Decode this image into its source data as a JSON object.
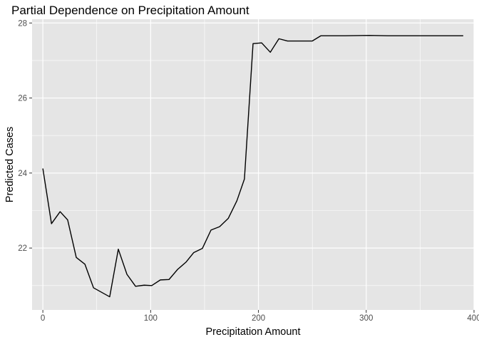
{
  "chart_data": {
    "type": "line",
    "title": "Partial Dependence on Precipitation Amount",
    "xlabel": "Precipitation Amount",
    "ylabel": "Predicted Cases",
    "xlim": [
      -10,
      400
    ],
    "ylim": [
      20.35,
      28.1
    ],
    "xticks": [
      0,
      100,
      200,
      300,
      400
    ],
    "yticks": [
      22,
      24,
      26,
      28
    ],
    "x_tick_labels": [
      "0",
      "100",
      "200",
      "300",
      "400"
    ],
    "y_tick_labels": [
      "22",
      "24",
      "26",
      "28"
    ],
    "grid": true,
    "background": "#E5E5E5",
    "grid_color": "#FFFFFF",
    "line_color": "#000000",
    "series": [
      {
        "x": [
          0,
          8,
          16,
          23,
          31,
          39,
          47,
          62,
          70,
          78,
          86,
          94,
          101,
          109,
          117,
          125,
          133,
          140,
          148,
          156,
          164,
          172,
          180,
          187,
          195,
          203,
          211,
          219,
          227,
          250,
          258,
          280,
          303,
          320,
          390
        ],
        "y": [
          24.12,
          22.65,
          22.97,
          22.75,
          21.75,
          21.57,
          20.94,
          20.7,
          21.97,
          21.3,
          20.98,
          21.01,
          21.0,
          21.15,
          21.16,
          21.43,
          21.63,
          21.88,
          21.99,
          22.48,
          22.57,
          22.79,
          23.26,
          23.84,
          27.45,
          27.47,
          27.22,
          27.58,
          27.52,
          27.52,
          27.66,
          27.66,
          27.67,
          27.66,
          27.66
        ]
      }
    ]
  }
}
